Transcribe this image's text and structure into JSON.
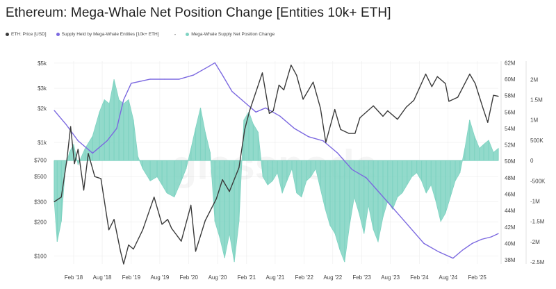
{
  "title": "Ethereum: Mega-Whale Net Position Change [Entities 10k+ ETH]",
  "legend": {
    "price": "ETH: Price [USD]",
    "supply": "Supply Held by Mega-Whale Entities [10k+ ETH]",
    "separator": "-",
    "change": "Mega-Whale Supply Net Position Change"
  },
  "watermark": "glassnode",
  "colors": {
    "price": "#3a3a3a",
    "supply": "#7b68e0",
    "change": "#7fd3c2",
    "grid": "#ececec"
  },
  "chart_data": {
    "type": "line",
    "title": "Ethereum: Mega-Whale Net Position Change [Entities 10k+ ETH]",
    "x_ticks": [
      "Feb '18",
      "Aug '18",
      "Feb '19",
      "Aug '19",
      "Feb '20",
      "Aug '20",
      "Feb '21",
      "Aug '21",
      "Feb '22",
      "Aug '22",
      "Feb '23",
      "Aug '23",
      "Feb '24",
      "Aug '24",
      "Feb '25"
    ],
    "xlim": [
      "2017-10-01",
      "2025-06-15"
    ],
    "y_left": {
      "scale": "log",
      "ticks": [
        {
          "label": "$100",
          "value": 100
        },
        {
          "label": "$200",
          "value": 200
        },
        {
          "label": "$300",
          "value": 300
        },
        {
          "label": "$500",
          "value": 500
        },
        {
          "label": "$700",
          "value": 700
        },
        {
          "label": "$1k",
          "value": 1000
        },
        {
          "label": "$2k",
          "value": 2000
        },
        {
          "label": "$3k",
          "value": 3000
        },
        {
          "label": "$5k",
          "value": 5000
        }
      ],
      "ylim": [
        85,
        5200
      ]
    },
    "y_mid": {
      "ticks": [
        {
          "label": "38M",
          "value": 38
        },
        {
          "label": "40M",
          "value": 40
        },
        {
          "label": "42M",
          "value": 42
        },
        {
          "label": "44M",
          "value": 44
        },
        {
          "label": "46M",
          "value": 46
        },
        {
          "label": "48M",
          "value": 48
        },
        {
          "label": "50M",
          "value": 50
        },
        {
          "label": "52M",
          "value": 52
        },
        {
          "label": "54M",
          "value": 54
        },
        {
          "label": "56M",
          "value": 56
        },
        {
          "label": "58M",
          "value": 58
        },
        {
          "label": "60M",
          "value": 60
        },
        {
          "label": "62M",
          "value": 62
        }
      ],
      "ylim": [
        37.5,
        62.2
      ]
    },
    "y_right": {
      "ticks": [
        {
          "label": "2M",
          "value": 2000000
        },
        {
          "label": "1.5M",
          "value": 1500000
        },
        {
          "label": "1M",
          "value": 1000000
        },
        {
          "label": "500K",
          "value": 500000
        },
        {
          "label": "0",
          "value": 0
        },
        {
          "label": "-500K",
          "value": -500000
        },
        {
          "label": "-1M",
          "value": -1000000
        },
        {
          "label": "-1.5M",
          "value": -1500000
        },
        {
          "label": "-2M",
          "value": -2000000
        },
        {
          "label": "-2.5M",
          "value": -2500000
        }
      ],
      "ylim": [
        -2550000,
        2450000
      ]
    },
    "series": [
      {
        "name": "ETH: Price [USD]",
        "axis": "left",
        "kind": "line",
        "points": [
          [
            "2017-10-01",
            300
          ],
          [
            "2017-11-15",
            330
          ],
          [
            "2017-12-20",
            700
          ],
          [
            "2018-01-13",
            1380
          ],
          [
            "2018-02-06",
            650
          ],
          [
            "2018-03-01",
            870
          ],
          [
            "2018-04-06",
            380
          ],
          [
            "2018-05-05",
            800
          ],
          [
            "2018-06-15",
            500
          ],
          [
            "2018-07-24",
            480
          ],
          [
            "2018-09-12",
            170
          ],
          [
            "2018-10-15",
            210
          ],
          [
            "2018-11-25",
            110
          ],
          [
            "2018-12-15",
            85
          ],
          [
            "2019-01-15",
            125
          ],
          [
            "2019-02-15",
            115
          ],
          [
            "2019-04-15",
            170
          ],
          [
            "2019-06-26",
            330
          ],
          [
            "2019-08-15",
            190
          ],
          [
            "2019-09-20",
            210
          ],
          [
            "2019-10-15",
            175
          ],
          [
            "2019-12-15",
            135
          ],
          [
            "2020-02-14",
            280
          ],
          [
            "2020-03-15",
            110
          ],
          [
            "2020-05-15",
            205
          ],
          [
            "2020-07-25",
            320
          ],
          [
            "2020-09-01",
            470
          ],
          [
            "2020-10-15",
            370
          ],
          [
            "2020-12-15",
            600
          ],
          [
            "2021-01-20",
            1300
          ],
          [
            "2021-02-20",
            1900
          ],
          [
            "2021-05-12",
            4100
          ],
          [
            "2021-06-25",
            1800
          ],
          [
            "2021-07-20",
            1900
          ],
          [
            "2021-08-25",
            3200
          ],
          [
            "2021-09-25",
            2900
          ],
          [
            "2021-11-10",
            4800
          ],
          [
            "2021-12-15",
            3900
          ],
          [
            "2022-01-25",
            2400
          ],
          [
            "2022-03-30",
            3400
          ],
          [
            "2022-05-15",
            2000
          ],
          [
            "2022-06-18",
            1000
          ],
          [
            "2022-08-14",
            1950
          ],
          [
            "2022-09-20",
            1300
          ],
          [
            "2022-11-12",
            1200
          ],
          [
            "2022-12-20",
            1200
          ],
          [
            "2023-01-20",
            1650
          ],
          [
            "2023-04-15",
            2100
          ],
          [
            "2023-06-15",
            1700
          ],
          [
            "2023-07-15",
            1900
          ],
          [
            "2023-09-15",
            1600
          ],
          [
            "2023-11-10",
            2050
          ],
          [
            "2023-12-28",
            2350
          ],
          [
            "2024-03-12",
            4000
          ],
          [
            "2024-04-20",
            3100
          ],
          [
            "2024-05-25",
            3800
          ],
          [
            "2024-07-15",
            3300
          ],
          [
            "2024-08-06",
            2300
          ],
          [
            "2024-10-01",
            2500
          ],
          [
            "2024-12-16",
            4000
          ],
          [
            "2025-01-20",
            3300
          ],
          [
            "2025-03-10",
            2000
          ],
          [
            "2025-04-09",
            1500
          ],
          [
            "2025-05-15",
            2600
          ],
          [
            "2025-06-15",
            2550
          ]
        ]
      },
      {
        "name": "Supply Held by Mega-Whale Entities [10k+ ETH]",
        "axis": "mid",
        "kind": "line",
        "points": [
          [
            "2017-10-01",
            56.2
          ],
          [
            "2017-12-15",
            54.5
          ],
          [
            "2018-03-01",
            52.5
          ],
          [
            "2018-06-01",
            51.0
          ],
          [
            "2018-09-01",
            52.5
          ],
          [
            "2018-11-01",
            54.0
          ],
          [
            "2018-12-15",
            57.5
          ],
          [
            "2019-02-01",
            59.5
          ],
          [
            "2019-06-01",
            60.0
          ],
          [
            "2019-09-01",
            60.0
          ],
          [
            "2019-12-01",
            60.0
          ],
          [
            "2020-03-01",
            60.5
          ],
          [
            "2020-06-01",
            61.5
          ],
          [
            "2020-07-15",
            62.0
          ],
          [
            "2020-09-01",
            60.5
          ],
          [
            "2020-11-01",
            58.5
          ],
          [
            "2021-01-01",
            57.5
          ],
          [
            "2021-04-01",
            56.0
          ],
          [
            "2021-06-01",
            56.5
          ],
          [
            "2021-09-01",
            55.5
          ],
          [
            "2021-12-01",
            54.0
          ],
          [
            "2022-03-01",
            53.0
          ],
          [
            "2022-06-01",
            52.5
          ],
          [
            "2022-09-01",
            51.0
          ],
          [
            "2022-12-01",
            49.0
          ],
          [
            "2023-03-01",
            48.0
          ],
          [
            "2023-06-01",
            46.0
          ],
          [
            "2023-09-01",
            44.0
          ],
          [
            "2023-12-01",
            42.0
          ],
          [
            "2024-03-01",
            40.0
          ],
          [
            "2024-06-01",
            39.0
          ],
          [
            "2024-09-01",
            38.2
          ],
          [
            "2024-11-01",
            39.2
          ],
          [
            "2025-01-01",
            40.0
          ],
          [
            "2025-03-01",
            40.5
          ],
          [
            "2025-05-01",
            40.8
          ],
          [
            "2025-06-15",
            41.2
          ]
        ]
      },
      {
        "name": "Mega-Whale Supply Net Position Change",
        "axis": "right",
        "kind": "area",
        "points": [
          [
            "2017-10-01",
            -1000000
          ],
          [
            "2017-10-20",
            -2000000
          ],
          [
            "2017-11-15",
            -1500000
          ],
          [
            "2017-12-10",
            -200000
          ],
          [
            "2018-01-05",
            200000
          ],
          [
            "2018-02-01",
            400000
          ],
          [
            "2018-03-01",
            -100000
          ],
          [
            "2018-04-15",
            300000
          ],
          [
            "2018-06-01",
            600000
          ],
          [
            "2018-07-15",
            1200000
          ],
          [
            "2018-08-15",
            1500000
          ],
          [
            "2018-09-15",
            1400000
          ],
          [
            "2018-10-15",
            2000000
          ],
          [
            "2018-11-15",
            1500000
          ],
          [
            "2018-12-15",
            1400000
          ],
          [
            "2019-01-15",
            1500000
          ],
          [
            "2019-02-15",
            1000000
          ],
          [
            "2019-03-15",
            100000
          ],
          [
            "2019-04-15",
            -200000
          ],
          [
            "2019-06-01",
            -500000
          ],
          [
            "2019-07-15",
            -400000
          ],
          [
            "2019-08-15",
            -600000
          ],
          [
            "2019-09-15",
            -800000
          ],
          [
            "2019-11-01",
            -900000
          ],
          [
            "2019-12-15",
            -500000
          ],
          [
            "2020-01-15",
            -200000
          ],
          [
            "2020-02-15",
            300000
          ],
          [
            "2020-03-15",
            800000
          ],
          [
            "2020-04-15",
            1300000
          ],
          [
            "2020-05-15",
            700000
          ],
          [
            "2020-06-15",
            200000
          ],
          [
            "2020-07-15",
            -1500000
          ],
          [
            "2020-08-15",
            -1900000
          ],
          [
            "2020-09-15",
            -2400000
          ],
          [
            "2020-10-15",
            -1800000
          ],
          [
            "2020-11-15",
            -2500000
          ],
          [
            "2020-12-15",
            -1500000
          ],
          [
            "2021-01-15",
            1000000
          ],
          [
            "2021-02-15",
            1200000
          ],
          [
            "2021-03-15",
            900000
          ],
          [
            "2021-04-15",
            700000
          ],
          [
            "2021-05-15",
            -400000
          ],
          [
            "2021-06-15",
            -600000
          ],
          [
            "2021-07-15",
            -500000
          ],
          [
            "2021-08-15",
            -300000
          ],
          [
            "2021-09-15",
            -800000
          ],
          [
            "2021-10-15",
            -500000
          ],
          [
            "2021-11-15",
            -200000
          ],
          [
            "2021-12-15",
            -800000
          ],
          [
            "2022-01-15",
            -900000
          ],
          [
            "2022-02-15",
            -500000
          ],
          [
            "2022-03-15",
            -400000
          ],
          [
            "2022-04-15",
            -200000
          ],
          [
            "2022-05-15",
            -700000
          ],
          [
            "2022-06-15",
            -1200000
          ],
          [
            "2022-07-15",
            -1600000
          ],
          [
            "2022-08-15",
            -1800000
          ],
          [
            "2022-09-15",
            -2200000
          ],
          [
            "2022-10-15",
            -2500000
          ],
          [
            "2022-11-15",
            -1600000
          ],
          [
            "2022-12-15",
            -900000
          ],
          [
            "2023-01-15",
            -1300000
          ],
          [
            "2023-02-15",
            -1800000
          ],
          [
            "2023-03-15",
            -1100000
          ],
          [
            "2023-04-15",
            -1700000
          ],
          [
            "2023-05-15",
            -2000000
          ],
          [
            "2023-06-15",
            -1400000
          ],
          [
            "2023-07-15",
            -1000000
          ],
          [
            "2023-08-15",
            -1200000
          ],
          [
            "2023-09-15",
            -900000
          ],
          [
            "2023-10-15",
            -800000
          ],
          [
            "2023-11-15",
            -600000
          ],
          [
            "2023-12-15",
            -400000
          ],
          [
            "2024-01-15",
            -300000
          ],
          [
            "2024-02-15",
            -500000
          ],
          [
            "2024-03-15",
            -800000
          ],
          [
            "2024-04-15",
            -600000
          ],
          [
            "2024-05-15",
            -1000000
          ],
          [
            "2024-06-15",
            -1500000
          ],
          [
            "2024-07-15",
            -1300000
          ],
          [
            "2024-08-15",
            -900000
          ],
          [
            "2024-09-15",
            -500000
          ],
          [
            "2024-10-15",
            -300000
          ],
          [
            "2024-11-15",
            300000
          ],
          [
            "2024-12-15",
            1000000
          ],
          [
            "2025-01-15",
            600000
          ],
          [
            "2025-02-15",
            300000
          ],
          [
            "2025-03-15",
            400000
          ],
          [
            "2025-04-15",
            500000
          ],
          [
            "2025-05-15",
            200000
          ],
          [
            "2025-06-15",
            300000
          ]
        ]
      }
    ]
  }
}
